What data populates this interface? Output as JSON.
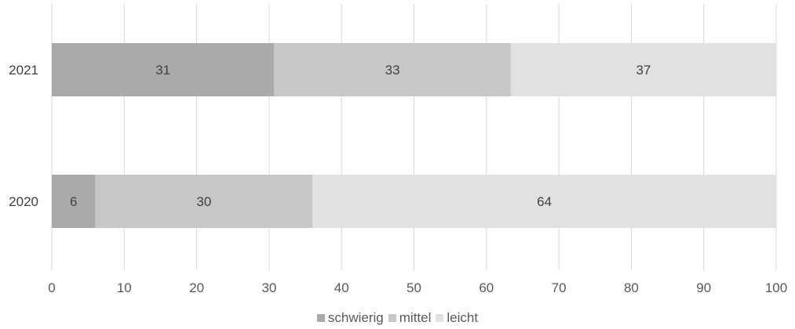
{
  "chart_data": {
    "type": "bar",
    "orientation": "horizontal",
    "stacked": true,
    "categories": [
      "2021",
      "2020"
    ],
    "series": [
      {
        "name": "schwierig",
        "values": [
          31,
          6
        ],
        "color": "#a9aaab"
      },
      {
        "name": "mittel",
        "values": [
          33,
          30
        ],
        "color": "#c6c7c8"
      },
      {
        "name": "leicht",
        "values": [
          37,
          64
        ],
        "color": "#e0e1e2"
      }
    ],
    "xlim": [
      0,
      100
    ],
    "xticks": [
      0,
      10,
      20,
      30,
      40,
      50,
      60,
      70,
      80,
      90,
      100
    ],
    "title": "",
    "xlabel": "",
    "ylabel": "",
    "grid": "vertical",
    "legend_position": "bottom"
  }
}
